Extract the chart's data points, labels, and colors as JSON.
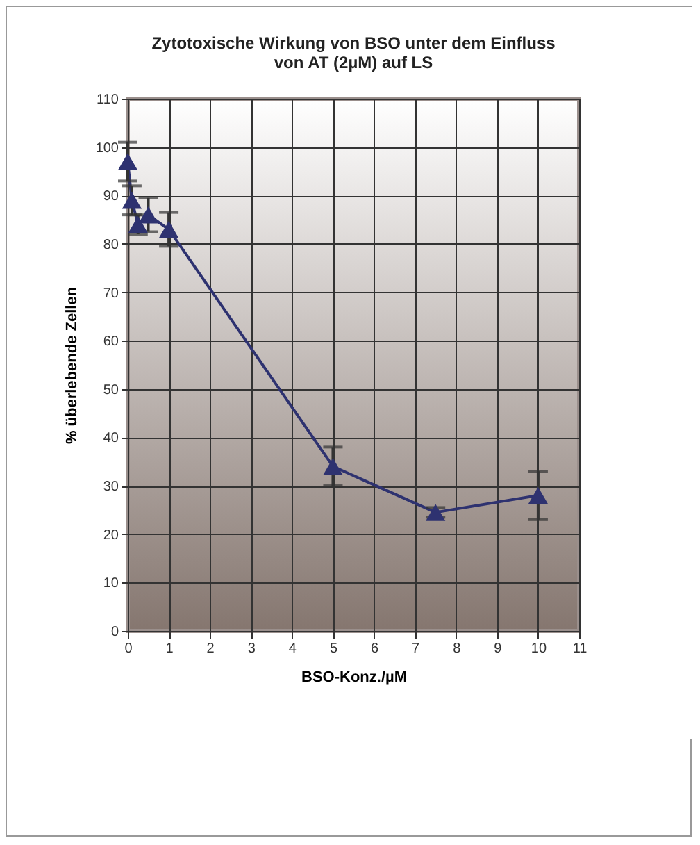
{
  "chart_data": {
    "type": "line",
    "title": [
      "Zytotoxische Wirkung von BSO unter dem Einfluss",
      "von AT (2µM) auf LS"
    ],
    "xlabel": "BSO-Konz./µM",
    "ylabel": "% überlebende Zellen",
    "x": [
      0,
      0.1,
      0.25,
      0.5,
      1,
      5,
      7.5,
      10
    ],
    "series": [
      {
        "color": "#2e3270",
        "values": [
          97,
          89,
          84,
          86,
          83,
          34,
          24.5,
          28
        ],
        "errors": [
          4,
          3,
          2,
          3.5,
          3.5,
          4,
          1,
          5
        ]
      }
    ],
    "xlim": [
      0,
      11
    ],
    "xticks": [
      0,
      1,
      2,
      3,
      4,
      5,
      6,
      7,
      8,
      9,
      10,
      11
    ],
    "ylim": [
      0,
      110
    ],
    "yticks": [
      0,
      10,
      20,
      30,
      40,
      50,
      60,
      70,
      80,
      90,
      100,
      110
    ],
    "grid": true,
    "marker": "triangle",
    "line_style": "solid"
  }
}
